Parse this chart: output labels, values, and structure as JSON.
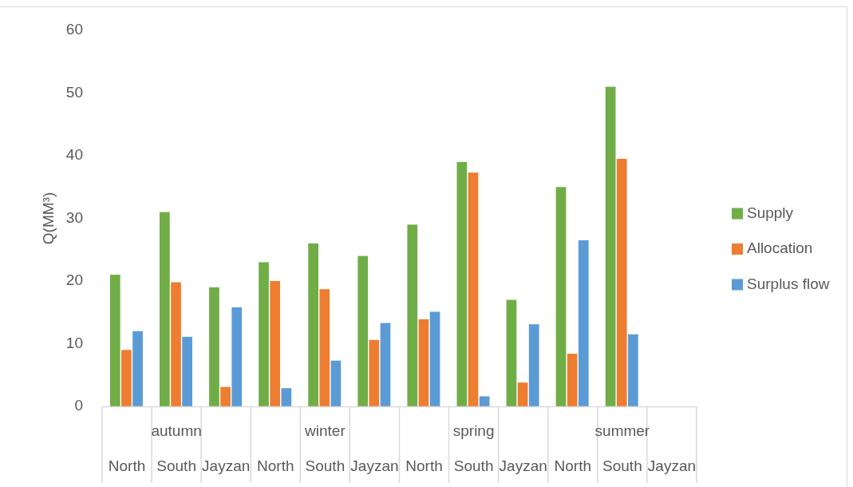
{
  "chart_data": {
    "type": "bar",
    "ylabel": "Q(MM³)",
    "categories": [
      "North",
      "South",
      "Jayzan",
      "North",
      "South",
      "Jayzan",
      "North",
      "South",
      "Jayzan",
      "North",
      "South",
      "Jayzan"
    ],
    "annotations": [
      "autumn",
      "winter",
      "spring",
      "summer"
    ],
    "series": [
      {
        "name": "Supply",
        "color": "#70ad47",
        "values": [
          21,
          31,
          19,
          23,
          26,
          24,
          29,
          39,
          17,
          35,
          51,
          null
        ]
      },
      {
        "name": "Allocation",
        "color": "#ed7d31",
        "values": [
          9,
          19.8,
          3.1,
          20,
          18.7,
          10.6,
          13.9,
          37.3,
          3.8,
          8.4,
          39.5,
          null
        ]
      },
      {
        "name": "Surplus flow",
        "color": "#5b9bd5",
        "values": [
          12,
          11.1,
          15.8,
          2.9,
          7.3,
          13.3,
          15.1,
          1.6,
          13.1,
          26.5,
          11.5,
          null
        ]
      }
    ],
    "ylim": [
      0,
      60
    ],
    "yticks": [
      0,
      10,
      20,
      30,
      40,
      50,
      60
    ],
    "legend": "right"
  }
}
